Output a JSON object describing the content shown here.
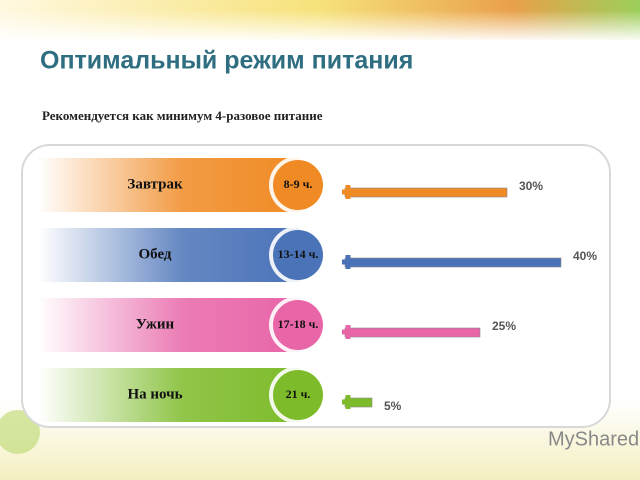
{
  "chart_data": {
    "type": "bar",
    "title": "Оптимальный режим питания",
    "subtitle": "Рекомендуется как минимум 4-разовое питание",
    "categories": [
      "Завтрак",
      "Обед",
      "Ужин",
      "На ночь"
    ],
    "times": [
      "8-9 ч.",
      "13-14 ч.",
      "17-18 ч.",
      "21 ч."
    ],
    "values": [
      30,
      40,
      25,
      5
    ],
    "value_labels": [
      "30%",
      "40%",
      "25%",
      "5%"
    ],
    "colors": [
      "#f08a24",
      "#4a73b8",
      "#e865a8",
      "#7dbb2a"
    ]
  },
  "watermark": "MyShared"
}
